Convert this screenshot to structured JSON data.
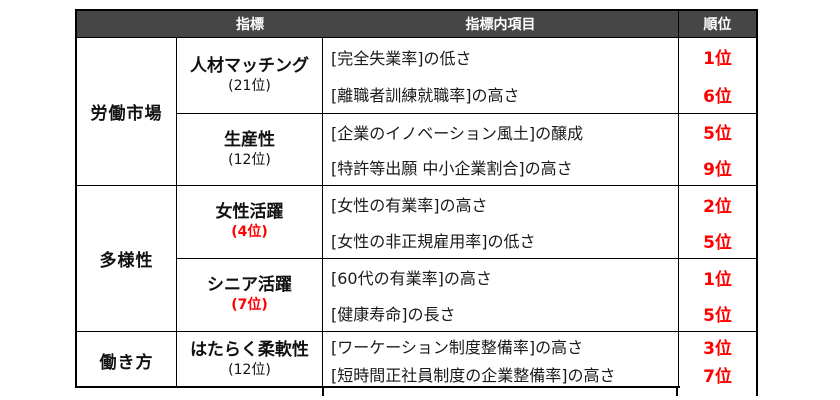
{
  "chart_data": {
    "type": "table",
    "title": "",
    "columns": [
      "",
      "指標",
      "指標内項目",
      "順位"
    ],
    "rows": [
      [
        "労働市場",
        "人材マッチング (21位)",
        "[完全失業率]の低さ",
        "1位"
      ],
      [
        "労働市場",
        "人材マッチング (21位)",
        "[離職者訓練就職率]の高さ",
        "6位"
      ],
      [
        "労働市場",
        "生産性 (12位)",
        "[企業のイノベーション風土]の醸成",
        "5位"
      ],
      [
        "労働市場",
        "生産性 (12位)",
        "[特許等出願 中小企業割合]の高さ",
        "9位"
      ],
      [
        "多様性",
        "女性活躍 (4位)",
        "[女性の有業率]の高さ",
        "2位"
      ],
      [
        "多様性",
        "女性活躍 (4位)",
        "[女性の非正規雇用率]の低さ",
        "5位"
      ],
      [
        "多様性",
        "シニア活躍 (7位)",
        "[60代の有業率]の高さ",
        "1位"
      ],
      [
        "多様性",
        "シニア活躍 (7位)",
        "[健康寿命]の長さ",
        "5位"
      ],
      [
        "働き方",
        "はたらく柔軟性 (12位)",
        "[ワーケーション制度整備率]の高さ",
        "3位"
      ],
      [
        "働き方",
        "はたらく柔軟性 (12位)",
        "[短時間正社員制度の企業整備率]の高さ",
        "7位"
      ]
    ]
  },
  "table": {
    "headers": {
      "indicator": "指標",
      "item": "指標内項目",
      "rank": "順位"
    },
    "colors": {
      "header_bg": "#464646",
      "header_text": "#ffffff",
      "accent_red": "#ff0000",
      "border": "#000000",
      "text": "#111111"
    },
    "categories": [
      {
        "label": "労働市場",
        "indicators": [
          {
            "name": "人材マッチング",
            "rank": "(21位)",
            "highlight": false,
            "items": [
              {
                "text": "[完全失業率]の低さ",
                "rank": "1位"
              },
              {
                "text": "[離職者訓練就職率]の高さ",
                "rank": "6位"
              }
            ]
          },
          {
            "name": "生産性",
            "rank": "(12位)",
            "highlight": false,
            "items": [
              {
                "text": "[企業のイノベーション風土]の醸成",
                "rank": "5位"
              },
              {
                "text": "[特許等出願 中小企業割合]の高さ",
                "rank": "9位"
              }
            ]
          }
        ]
      },
      {
        "label": "多様性",
        "indicators": [
          {
            "name": "女性活躍",
            "rank": "(4位)",
            "highlight": true,
            "items": [
              {
                "text": "[女性の有業率]の高さ",
                "rank": "2位"
              },
              {
                "text": "[女性の非正規雇用率]の低さ",
                "rank": "5位"
              }
            ]
          },
          {
            "name": "シニア活躍",
            "rank": "(7位)",
            "highlight": true,
            "items": [
              {
                "text": "[60代の有業率]の高さ",
                "rank": "1位"
              },
              {
                "text": "[健康寿命]の長さ",
                "rank": "5位"
              }
            ]
          }
        ]
      },
      {
        "label": "働き方",
        "indicators": [
          {
            "name": "はたらく柔軟性",
            "rank": "(12位)",
            "highlight": false,
            "items": [
              {
                "text": "[ワーケーション制度整備率]の高さ",
                "rank": "3位"
              },
              {
                "text": "[短時間正社員制度の企業整備率]の高さ",
                "rank": "7位"
              }
            ]
          }
        ]
      }
    ]
  }
}
